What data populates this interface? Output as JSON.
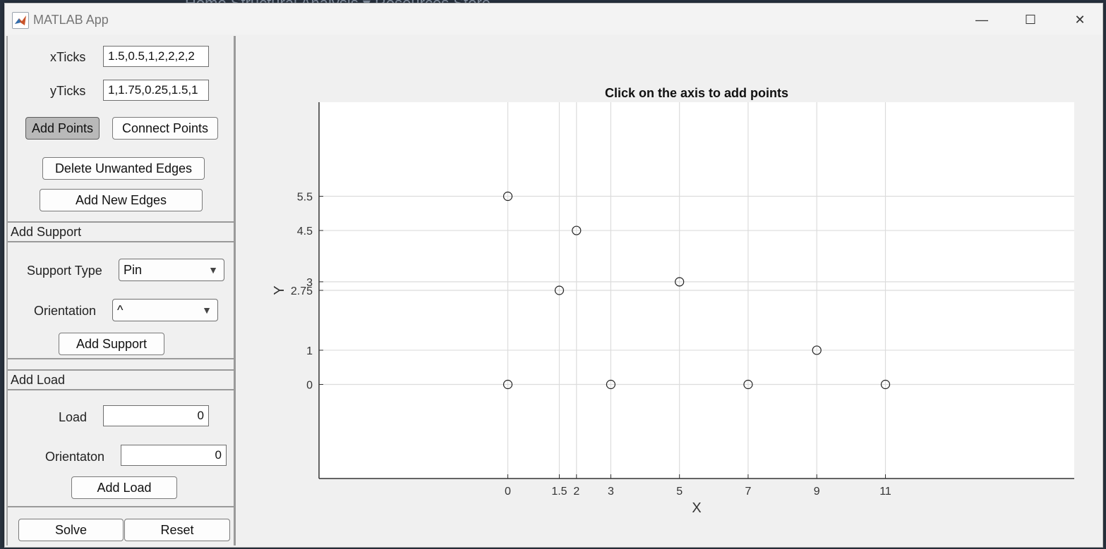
{
  "background": {
    "text": "Home  Structural Analysis ▾  Resources  Store"
  },
  "window": {
    "title": "MATLAB App",
    "controls": {
      "minimize": "—",
      "maximize": "☐",
      "close": "✕"
    }
  },
  "inputs": {
    "xticks_label": "xTicks",
    "xticks_value": "1.5,0.5,1,2,2,2,2",
    "yticks_label": "yTicks",
    "yticks_value": "1,1.75,0.25,1.5,1"
  },
  "buttons": {
    "add_points": "Add Points",
    "connect_points": "Connect Points",
    "delete_edges": "Delete Unwanted Edges",
    "add_new_edges": "Add New Edges",
    "add_support": "Add Support",
    "add_load": "Add Load",
    "solve": "Solve",
    "reset": "Reset"
  },
  "support": {
    "header": "Add Support",
    "type_label": "Support Type",
    "type_value": "Pin",
    "orientation_label": "Orientation",
    "orientation_value": "^"
  },
  "load": {
    "header": "Add Load",
    "load_label": "Load",
    "load_value": "0",
    "orientation_label": "Orientaton",
    "orientation_value": "0"
  },
  "chart_data": {
    "type": "scatter",
    "title": "Click on the axis to add points",
    "xlabel": "X",
    "ylabel": "Y",
    "xlim": [
      -5.5,
      16.5
    ],
    "ylim": [
      -2.75,
      8.25
    ],
    "xticks": [
      0,
      1.5,
      2,
      3,
      5,
      7,
      9,
      11
    ],
    "xtick_labels": [
      "0",
      "1.5",
      "2",
      "3",
      "5",
      "7",
      "9",
      "11"
    ],
    "yticks": [
      0,
      1,
      2.75,
      3,
      4.5,
      5.5
    ],
    "ytick_labels": [
      "0",
      "1",
      "2.75",
      "3",
      "4.5",
      "5.5"
    ],
    "grid": true,
    "points": [
      {
        "x": 0,
        "y": 5.5
      },
      {
        "x": 2,
        "y": 4.5
      },
      {
        "x": 1.5,
        "y": 2.75
      },
      {
        "x": 5,
        "y": 3
      },
      {
        "x": 9,
        "y": 1
      },
      {
        "x": 0,
        "y": 0
      },
      {
        "x": 3,
        "y": 0
      },
      {
        "x": 7,
        "y": 0
      },
      {
        "x": 11,
        "y": 0
      }
    ]
  }
}
